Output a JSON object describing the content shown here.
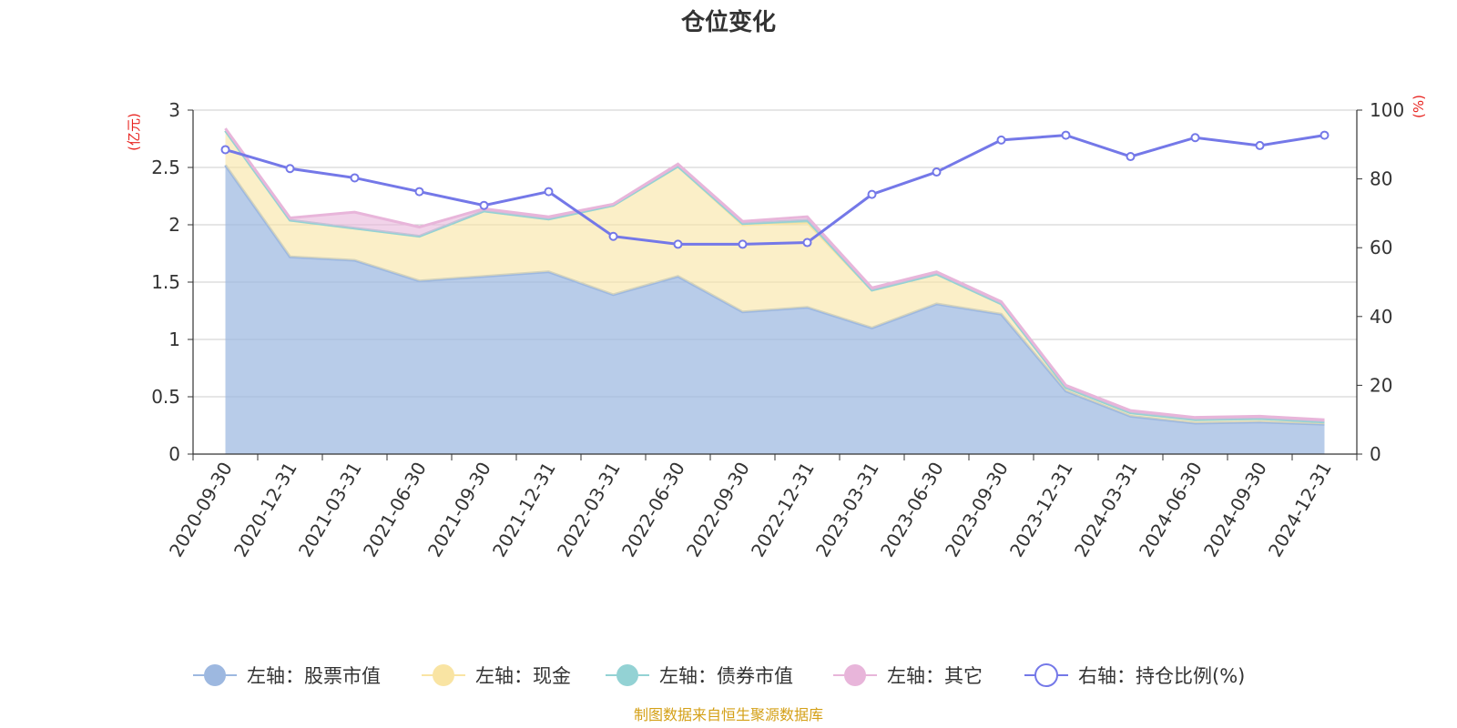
{
  "chart_data": {
    "type": "area",
    "title": "仓位变化",
    "left_axis_unit": "(亿元)",
    "right_axis_unit": "(%)",
    "categories": [
      "2020-09-30",
      "2020-12-31",
      "2021-03-31",
      "2021-06-30",
      "2021-09-30",
      "2021-12-31",
      "2022-03-31",
      "2022-06-30",
      "2022-09-30",
      "2022-12-31",
      "2023-03-31",
      "2023-06-30",
      "2023-09-30",
      "2023-12-31",
      "2024-03-31",
      "2024-06-30",
      "2024-09-30",
      "2024-12-31"
    ],
    "left_ylim": [
      0,
      3
    ],
    "left_ticks": [
      "0",
      "0.5",
      "1",
      "1.5",
      "2",
      "2.5",
      "3"
    ],
    "right_ylim": [
      0,
      100
    ],
    "right_ticks": [
      "0",
      "20",
      "40",
      "60",
      "80",
      "100"
    ],
    "series": [
      {
        "name": "左轴：股票市值",
        "axis": "left",
        "kind": "stacked-area",
        "color": "#9db8e0",
        "values": [
          2.52,
          1.72,
          1.69,
          1.51,
          1.55,
          1.59,
          1.39,
          1.55,
          1.24,
          1.28,
          1.1,
          1.31,
          1.22,
          0.55,
          0.33,
          0.27,
          0.28,
          0.26
        ]
      },
      {
        "name": "左轴：现金",
        "axis": "left",
        "kind": "stacked-area",
        "color": "#f9e4a3",
        "values": [
          0.3,
          0.32,
          0.28,
          0.39,
          0.57,
          0.46,
          0.78,
          0.96,
          0.76,
          0.74,
          0.33,
          0.26,
          0.09,
          0.03,
          0.03,
          0.03,
          0.03,
          0.02
        ]
      },
      {
        "name": "左轴：债券市值",
        "axis": "left",
        "kind": "stacked-area",
        "color": "#93d2d4",
        "values": [
          0,
          0,
          0,
          0,
          0,
          0,
          0,
          0,
          0.01,
          0.02,
          0,
          0,
          0,
          0,
          0,
          0,
          0,
          0
        ]
      },
      {
        "name": "左轴：其它",
        "axis": "left",
        "kind": "stacked-area",
        "color": "#e8b5da",
        "values": [
          0.02,
          0.02,
          0.14,
          0.08,
          0.02,
          0.02,
          0.01,
          0.02,
          0.02,
          0.03,
          0.02,
          0.02,
          0.02,
          0.02,
          0.02,
          0.02,
          0.02,
          0.02
        ]
      },
      {
        "name": "右轴：持仓比例(%)",
        "axis": "right",
        "kind": "line",
        "color": "#7478e8",
        "values": [
          88.5,
          83,
          80.3,
          76.3,
          72.3,
          76.3,
          63.3,
          61,
          61,
          61.5,
          75.5,
          82,
          91.3,
          92.7,
          86.5,
          92,
          89.7,
          92.7
        ]
      }
    ],
    "legend_position": "bottom",
    "source": "制图数据来自恒生聚源数据库"
  }
}
